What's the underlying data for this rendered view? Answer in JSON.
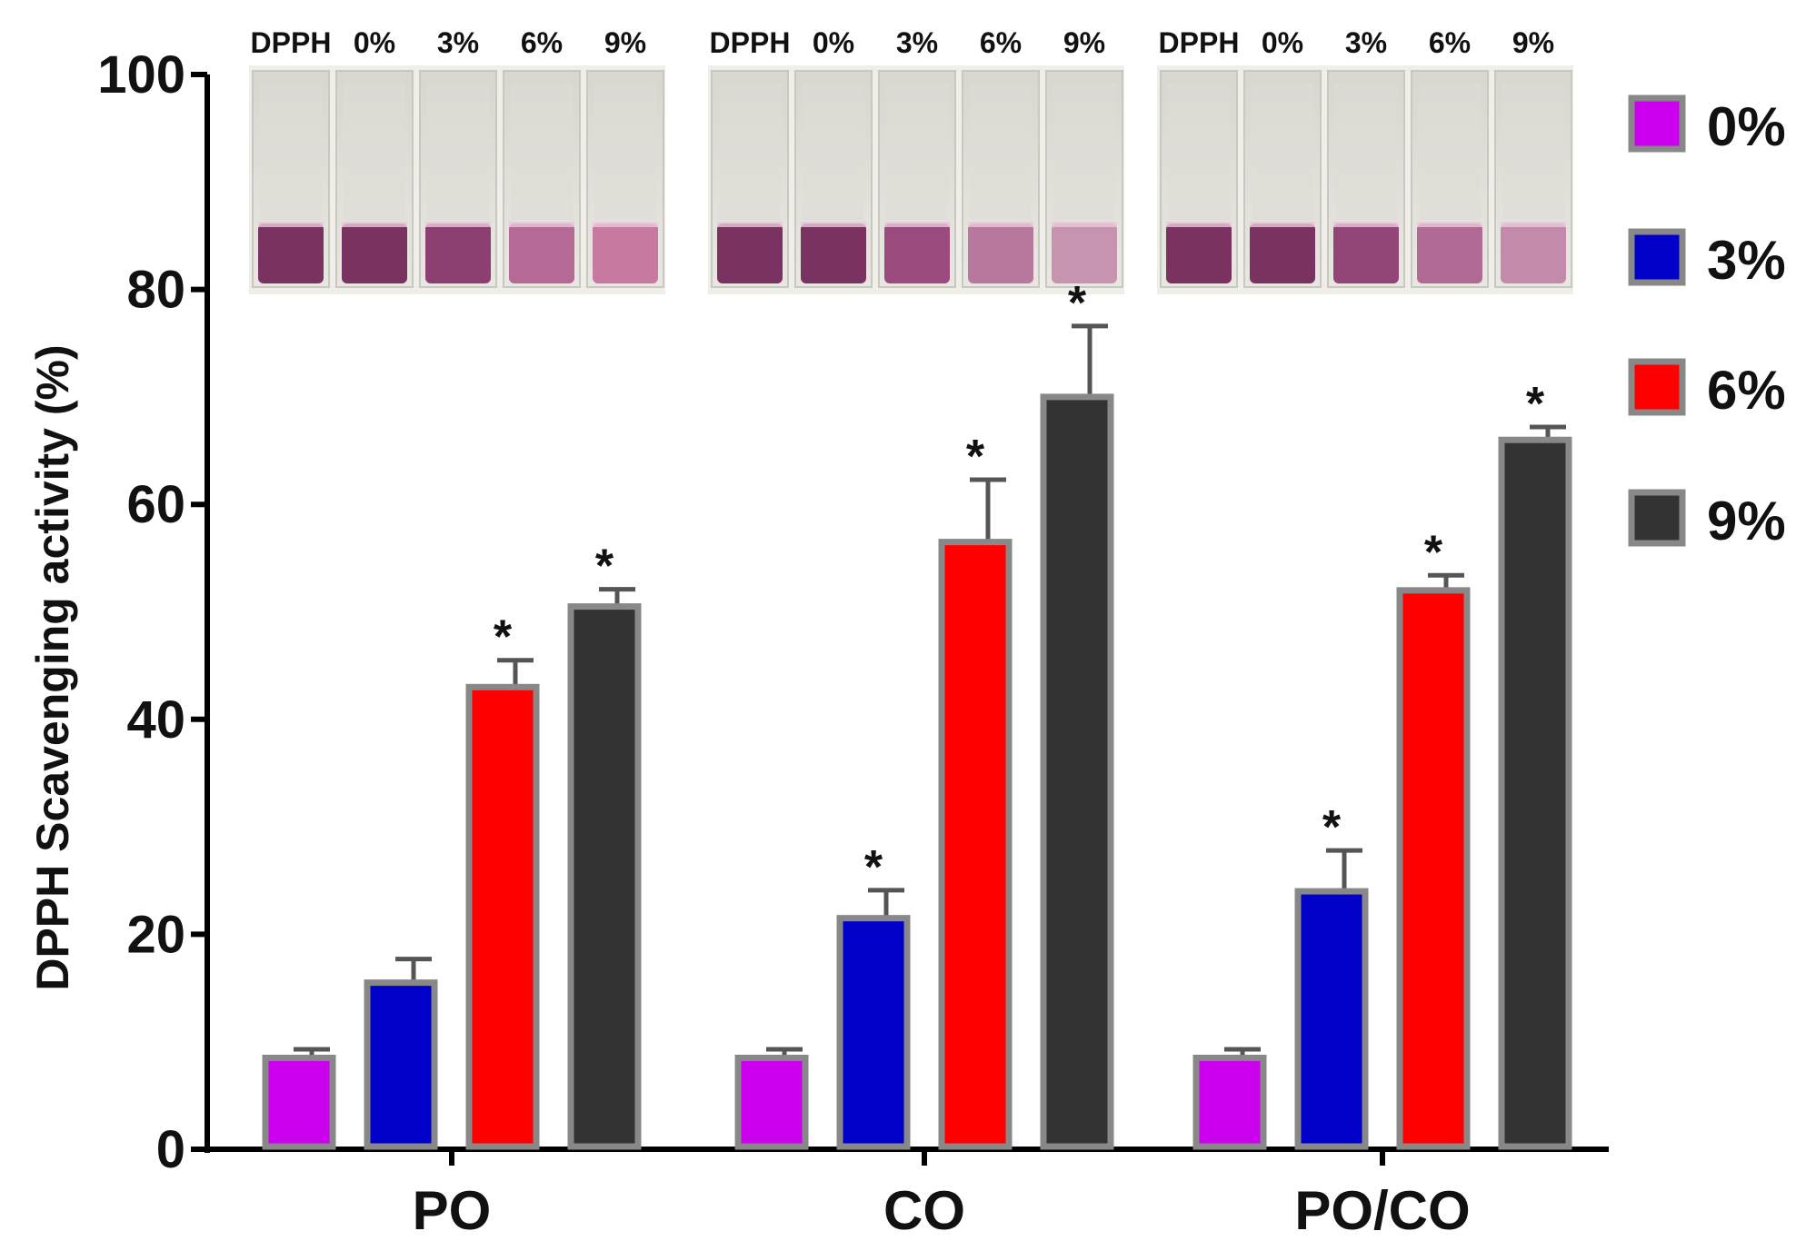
{
  "chart_data": {
    "type": "bar",
    "title": "",
    "xlabel": "",
    "ylabel": "DPPH Scavenging activity (%)",
    "ylim": [
      0,
      100
    ],
    "yticks": [
      0,
      20,
      40,
      60,
      80,
      100
    ],
    "categories": [
      "PO",
      "CO",
      "PO/CO"
    ],
    "legend_position": "right",
    "significance_marker": "*",
    "series": [
      {
        "name": "0%",
        "color": "#cc00ee",
        "values": [
          8.5,
          8.5,
          8.5
        ],
        "errors": [
          0.8,
          0.8,
          0.8
        ],
        "significant": [
          false,
          false,
          false
        ]
      },
      {
        "name": "3%",
        "color": "#0000c8",
        "values": [
          15.5,
          21.5,
          24.0
        ],
        "errors": [
          2.2,
          2.6,
          3.8
        ],
        "significant": [
          false,
          true,
          true
        ]
      },
      {
        "name": "6%",
        "color": "#ff0000",
        "values": [
          43.0,
          56.5,
          52.0
        ],
        "errors": [
          2.5,
          5.8,
          1.4
        ],
        "significant": [
          true,
          true,
          true
        ]
      },
      {
        "name": "9%",
        "color": "#333333",
        "values": [
          50.5,
          70.0,
          66.0
        ],
        "errors": [
          1.6,
          6.6,
          1.2
        ],
        "significant": [
          true,
          true,
          true
        ]
      }
    ],
    "inset_photo": {
      "labels": [
        "DPPH",
        "0%",
        "3%",
        "6%",
        "9%"
      ],
      "groups": [
        {
          "liquid_colors": [
            "#7a3360",
            "#7a3360",
            "#8e3f72",
            "#b56a95",
            "#c7799f"
          ]
        },
        {
          "liquid_colors": [
            "#7a3360",
            "#7a3360",
            "#9a4a7c",
            "#b8789e",
            "#c794b0"
          ]
        },
        {
          "liquid_colors": [
            "#7a3360",
            "#7a3360",
            "#944577",
            "#b06a93",
            "#c48aa9"
          ]
        }
      ]
    }
  }
}
